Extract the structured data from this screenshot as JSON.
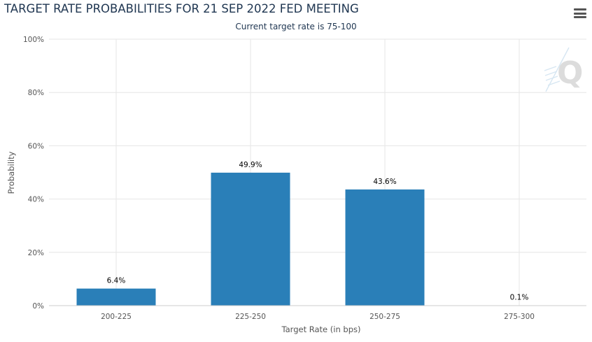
{
  "header": {
    "title": "TARGET RATE PROBABILITIES FOR 21 SEP 2022 FED MEETING",
    "subtitle": "Current target rate is 75-100",
    "menu_icon": "hamburger-menu-icon"
  },
  "watermark": {
    "text": "Q"
  },
  "chart_data": {
    "type": "bar",
    "title": "TARGET RATE PROBABILITIES FOR 21 SEP 2022 FED MEETING",
    "subtitle": "Current target rate is 75-100",
    "xlabel": "Target Rate (in bps)",
    "ylabel": "Probability",
    "categories": [
      "200-225",
      "225-250",
      "250-275",
      "275-300"
    ],
    "values": [
      6.4,
      49.9,
      43.6,
      0.1
    ],
    "data_labels": [
      "6.4%",
      "49.9%",
      "43.6%",
      "0.1%"
    ],
    "ylim": [
      0,
      100
    ],
    "yticks": [
      0,
      20,
      40,
      60,
      80,
      100
    ],
    "ytick_labels": [
      "0%",
      "20%",
      "40%",
      "60%",
      "80%",
      "100%"
    ],
    "grid": true,
    "bar_color": "#2a7fb8"
  }
}
